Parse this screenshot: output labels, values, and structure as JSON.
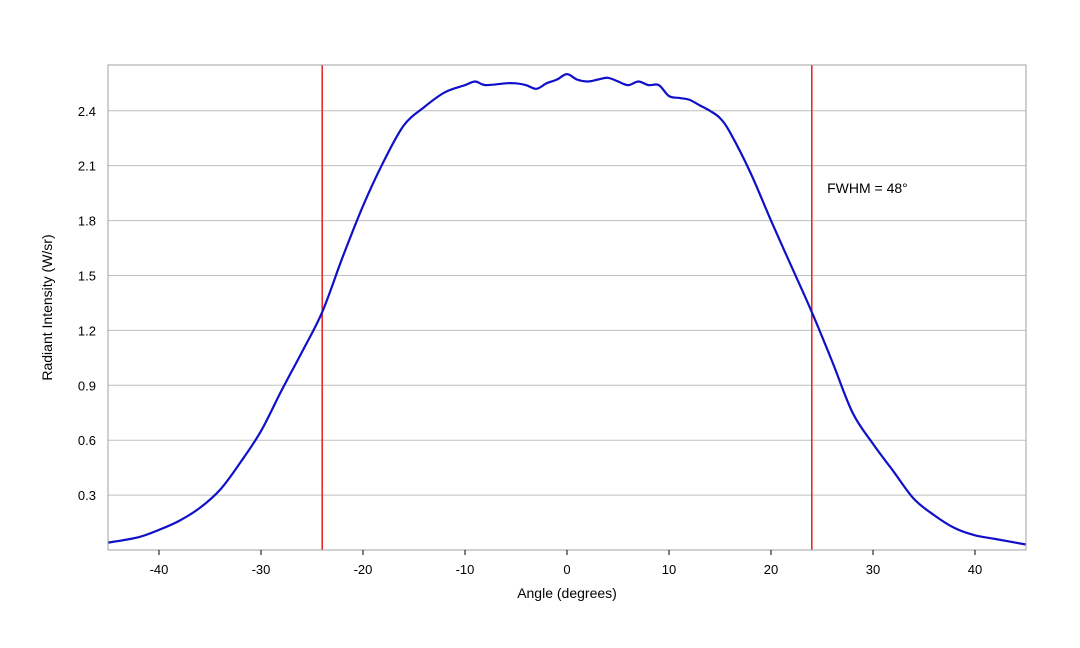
{
  "chart_data": {
    "type": "line",
    "title": "",
    "xlabel": "Angle (degrees)",
    "ylabel": "Radiant Intensity (W/sr)",
    "xlim": [
      -45,
      45
    ],
    "ylim": [
      0,
      2.65
    ],
    "xticks": [
      -40,
      -30,
      -20,
      -10,
      0,
      10,
      20,
      30,
      40
    ],
    "xtick_labels": [
      "-40",
      "-30",
      "-20",
      "-10",
      "0",
      "10",
      "20",
      "30",
      "40"
    ],
    "yticks": [
      0.3,
      0.6,
      0.9,
      1.2,
      1.5,
      1.8,
      2.1,
      2.4
    ],
    "ytick_labels": [
      "0.3",
      "0.6",
      "0.9",
      "1.2",
      "1.5",
      "1.8",
      "2.1",
      "2.4"
    ],
    "grid": "horizontal",
    "legend": "none",
    "colors": {
      "series": "#1010c8",
      "markers": "#e02020",
      "grid": "#bfbfbf",
      "frame": "#a0a0a0"
    },
    "series": [
      {
        "x": [
          -45,
          -42,
          -40,
          -38,
          -36,
          -34,
          -32,
          -30,
          -28,
          -26,
          -24,
          -22,
          -20,
          -18,
          -16,
          -14,
          -12,
          -10,
          -9,
          -8,
          -6,
          -5,
          -4,
          -3,
          -2,
          -1,
          0,
          1,
          2,
          3,
          4,
          5,
          6,
          7,
          8,
          9,
          10,
          11,
          12,
          13,
          14,
          15,
          16,
          18,
          20,
          22,
          24,
          26,
          28,
          30,
          32,
          34,
          36,
          38,
          40,
          42,
          45
        ],
        "y": [
          0.04,
          0.07,
          0.11,
          0.16,
          0.23,
          0.33,
          0.48,
          0.65,
          0.87,
          1.08,
          1.3,
          1.6,
          1.88,
          2.12,
          2.32,
          2.42,
          2.5,
          2.54,
          2.56,
          2.54,
          2.55,
          2.55,
          2.54,
          2.52,
          2.55,
          2.57,
          2.6,
          2.57,
          2.56,
          2.57,
          2.58,
          2.56,
          2.54,
          2.56,
          2.54,
          2.54,
          2.48,
          2.47,
          2.46,
          2.43,
          2.4,
          2.36,
          2.28,
          2.06,
          1.8,
          1.55,
          1.3,
          1.03,
          0.75,
          0.58,
          0.43,
          0.28,
          0.19,
          0.12,
          0.08,
          0.06,
          0.03
        ]
      }
    ],
    "markers": [
      {
        "x": -24,
        "type": "vertical-line"
      },
      {
        "x": 24,
        "type": "vertical-line"
      }
    ],
    "annotation": {
      "text": "FWHM = 48°",
      "x": 25.5,
      "y": 1.95
    }
  }
}
